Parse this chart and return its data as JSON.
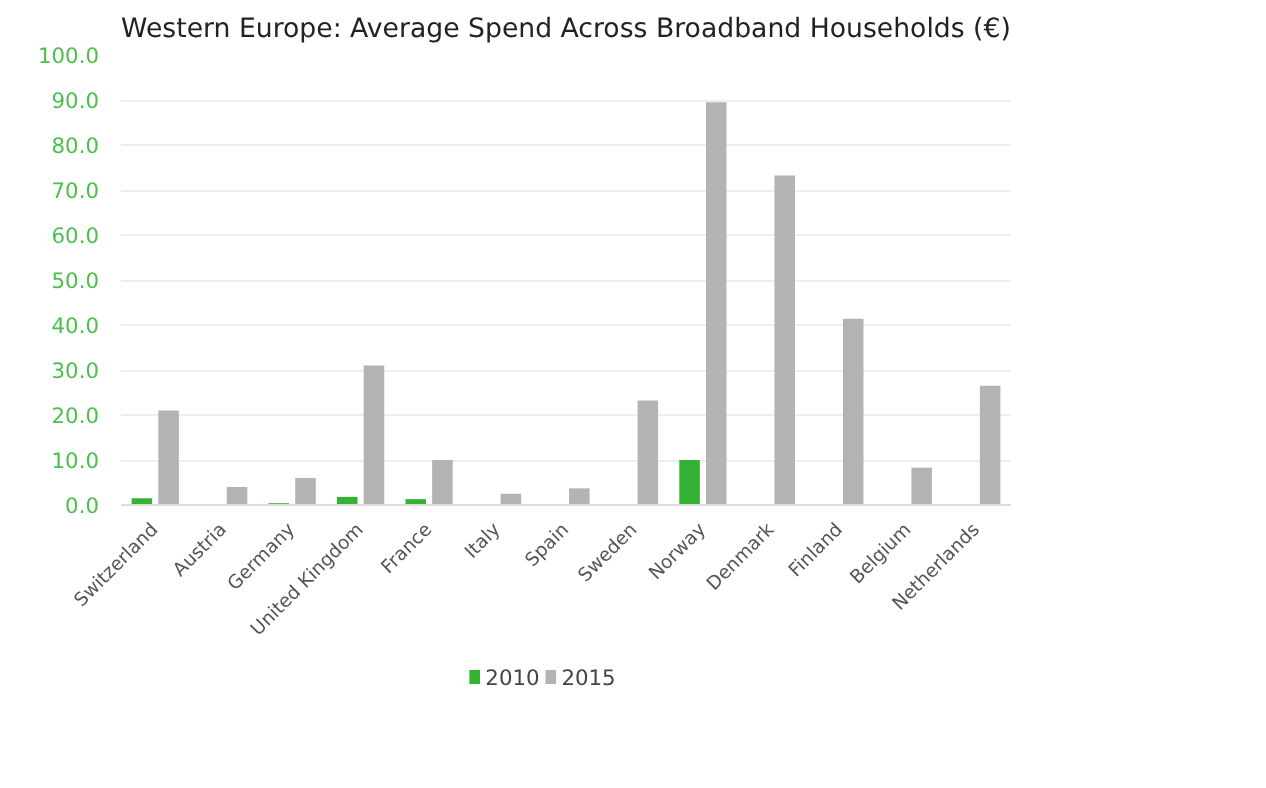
{
  "chart_data": {
    "type": "bar",
    "title": "Western Europe: Average Spend Across Broadband Households (€)",
    "categories": [
      "Switzerland",
      "Austria",
      "Germany",
      "United Kingdom",
      "France",
      "Italy",
      "Spain",
      "Sweden",
      "Norway",
      "Denmark",
      "Finland",
      "Belgium",
      "Netherlands"
    ],
    "series": [
      {
        "name": "2010",
        "color": "#33b233",
        "values": [
          1.5,
          null,
          0.4,
          1.8,
          1.3,
          null,
          null,
          null,
          10.0,
          null,
          null,
          null,
          null
        ]
      },
      {
        "name": "2015",
        "color": "#b3b3b3",
        "values": [
          21.0,
          4.0,
          6.0,
          31.0,
          10.0,
          2.5,
          3.7,
          23.2,
          89.5,
          73.2,
          41.4,
          8.3,
          26.5
        ]
      }
    ],
    "ylim": [
      0,
      100
    ],
    "yticks": [
      {
        "value": 0,
        "label": "0.0"
      },
      {
        "value": 10,
        "label": "10.0"
      },
      {
        "value": 20,
        "label": "20.0"
      },
      {
        "value": 30,
        "label": "30.0"
      },
      {
        "value": 40,
        "label": "40.0"
      },
      {
        "value": 50,
        "label": "50.0"
      },
      {
        "value": 60,
        "label": "60.0"
      },
      {
        "value": 70,
        "label": "70.0"
      },
      {
        "value": 80,
        "label": "80.0"
      },
      {
        "value": 90,
        "label": "90.0"
      },
      {
        "value": 100,
        "label": "100.0"
      }
    ],
    "grid": "y",
    "legend": "bottom"
  }
}
